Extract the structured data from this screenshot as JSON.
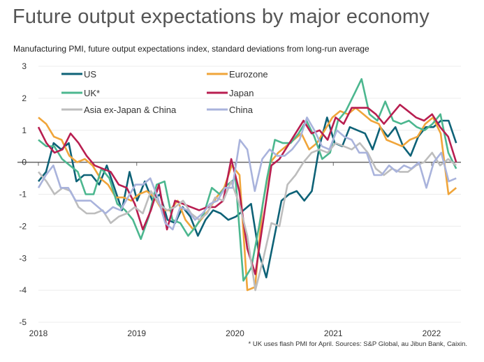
{
  "chart_data": {
    "type": "line",
    "title": "Future output expectations by major economy",
    "subtitle": "Manufacturing PMI, future output expectations index, standard deviations from long-run average",
    "footnote": "* UK uses flash PMI for April. Sources: S&P Global, au Jibun Bank, Caixin.",
    "xlabel": "",
    "ylabel": "",
    "ylim": [
      -5,
      3
    ],
    "yticks": [
      3,
      2,
      1,
      0,
      -1,
      -2,
      -3,
      -4,
      -5
    ],
    "xtick_labels": [
      "2018",
      "2019",
      "2020",
      "2021",
      "2022"
    ],
    "x_start": "2018-01",
    "x_end": "2022-04",
    "grid": true,
    "legend": "top-left, two columns",
    "series": [
      {
        "name": "US",
        "color": "#0e6277",
        "values": [
          -0.6,
          -0.3,
          0.6,
          0.4,
          0.6,
          -0.6,
          -0.4,
          -0.4,
          -0.7,
          -0.1,
          -0.8,
          -1.5,
          -0.3,
          -1.2,
          -0.6,
          -1.2,
          -1.0,
          -1.8,
          -1.9,
          -1.4,
          -1.7,
          -2.3,
          -1.8,
          -1.5,
          -1.6,
          -1.8,
          -1.7,
          -1.5,
          -1.3,
          -2.8,
          -3.6,
          -2.4,
          -1.2,
          -1.0,
          -0.9,
          -1.2,
          -0.9,
          0.5,
          1.4,
          0.6,
          0.5,
          1.1,
          1.0,
          0.9,
          0.4,
          1.1,
          0.8,
          1.1,
          0.5,
          0.2,
          0.8,
          1.1,
          1.1,
          1.3,
          1.3,
          0.6
        ]
      },
      {
        "name": "Eurozone",
        "color": "#f0a53a",
        "values": [
          1.4,
          1.2,
          0.8,
          0.7,
          0.2,
          0.0,
          0.1,
          -0.1,
          -0.5,
          -0.7,
          -1.1,
          -1.1,
          -1.2,
          -1.0,
          -0.9,
          -1.1,
          -1.5,
          -1.5,
          -1.2,
          -1.8,
          -2.1,
          -1.8,
          -1.5,
          -1.1,
          -0.8,
          -0.1,
          -0.4,
          -4.0,
          -3.9,
          -1.3,
          0.0,
          0.3,
          0.5,
          0.7,
          0.9,
          0.4,
          0.6,
          1.0,
          1.4,
          1.6,
          1.5,
          1.7,
          1.5,
          1.3,
          1.2,
          0.7,
          0.6,
          0.5,
          0.7,
          0.8,
          1.2,
          1.4,
          0.9,
          -1.0,
          -0.8
        ]
      },
      {
        "name": "UK*",
        "color": "#4cb78f",
        "values": [
          0.7,
          0.5,
          0.5,
          0.1,
          -0.1,
          -0.3,
          -1.0,
          -1.0,
          -0.2,
          -0.5,
          -1.3,
          -1.5,
          -1.8,
          -2.4,
          -1.7,
          -0.7,
          -0.6,
          -1.8,
          -1.9,
          -2.3,
          -2.0,
          -1.6,
          -0.8,
          -1.0,
          -0.7,
          -0.5,
          -3.7,
          -3.3,
          -2.0,
          -0.5,
          0.7,
          0.6,
          0.6,
          0.9,
          1.3,
          0.8,
          0.1,
          0.3,
          1.3,
          1.6,
          2.1,
          2.6,
          1.5,
          1.3,
          1.9,
          1.3,
          1.2,
          1.3,
          1.1,
          1.0,
          1.2,
          1.5,
          0.3,
          -0.2
        ]
      },
      {
        "name": "Japan",
        "color": "#b81e50",
        "values": [
          1.1,
          0.6,
          0.3,
          0.4,
          0.9,
          0.6,
          0.2,
          -0.1,
          -0.2,
          -0.3,
          -0.7,
          -0.8,
          -1.3,
          -2.1,
          -1.5,
          -0.7,
          -2.1,
          -1.2,
          -1.3,
          -1.4,
          -1.5,
          -1.4,
          -1.4,
          -1.2,
          0.1,
          -0.9,
          -2.7,
          -3.5,
          -1.8,
          -0.1,
          0.1,
          0.5,
          0.9,
          1.3,
          0.9,
          1.0,
          0.7,
          1.4,
          1.2,
          1.7,
          1.7,
          1.7,
          1.5,
          1.2,
          1.5,
          1.8,
          1.6,
          1.4,
          1.3,
          1.5,
          1.1,
          0.8,
          0.0
        ]
      },
      {
        "name": "Asia ex-Japan & China",
        "color": "#bdbdbd",
        "values": [
          -0.3,
          -0.6,
          -1.0,
          -0.8,
          -0.9,
          -1.4,
          -1.6,
          -1.6,
          -1.5,
          -1.9,
          -1.7,
          -1.6,
          -1.4,
          -1.6,
          -0.9,
          -1.3,
          -1.5,
          -1.4,
          -1.2,
          -1.6,
          -1.8,
          -1.6,
          -1.1,
          -1.2,
          -0.6,
          -1.3,
          -2.3,
          -4.0,
          -3.0,
          -1.9,
          -2.0,
          -0.7,
          -0.4,
          0.0,
          0.3,
          0.4,
          0.3,
          0.6,
          0.5,
          0.4,
          0.6,
          0.3,
          -0.2,
          -0.4,
          -0.2,
          -0.3,
          -0.3,
          -0.1,
          0.0,
          0.3,
          -0.1,
          0.1,
          -0.1
        ]
      },
      {
        "name": "China",
        "color": "#a9b3dc",
        "values": [
          -0.8,
          -0.4,
          -0.1,
          -0.8,
          -0.8,
          -1.2,
          -1.2,
          -1.2,
          -1.4,
          -1.6,
          -1.4,
          -1.5,
          -1.1,
          -0.7,
          -0.7,
          -0.5,
          -1.1,
          -1.9,
          -2.1,
          -1.4,
          -1.5,
          -1.8,
          -1.6,
          -1.3,
          -1.2,
          -0.8,
          -0.8,
          0.7,
          0.4,
          -0.9,
          0.1,
          0.4,
          0.2,
          0.2,
          0.4,
          0.7,
          1.4,
          1.0,
          0.5,
          0.4,
          1.0,
          0.8,
          0.7,
          0.3,
          0.3,
          -0.4,
          -0.4,
          -0.1,
          -0.3,
          -0.1,
          -0.2,
          0.0,
          -0.8,
          0.0,
          0.3,
          -0.6,
          -0.5
        ]
      }
    ]
  }
}
